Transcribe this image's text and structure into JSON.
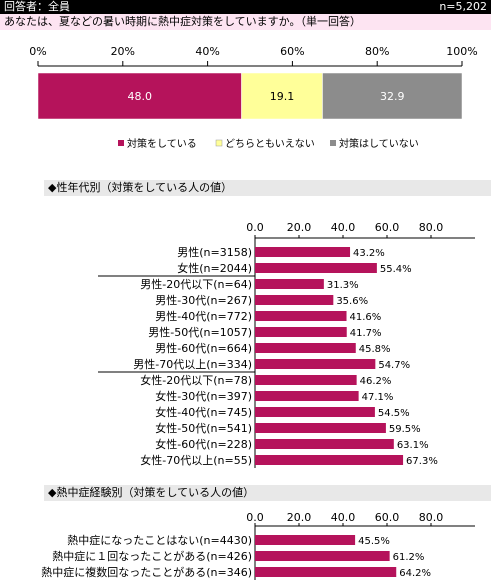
{
  "header": {
    "respondents": "回答者：全員",
    "n": "n=5,202"
  },
  "question": "あなたは、夏などの暑い時期に熱中症対策をしていますか。（単一回答）",
  "colors": {
    "accent": "#b5135b",
    "neutral": "#ffff99",
    "gray": "#8c8c8c"
  },
  "chart_data": [
    {
      "type": "bar",
      "orientation": "horizontal-stacked",
      "ticks": [
        "0%",
        "20%",
        "40%",
        "60%",
        "80%",
        "100%"
      ],
      "xlim": [
        0,
        100
      ],
      "series": [
        {
          "name": "対策をしている",
          "values": [
            48.0
          ],
          "labels": [
            "48.0"
          ],
          "color": "#b5135b"
        },
        {
          "name": "どちらともいえない",
          "values": [
            19.1
          ],
          "labels": [
            "19.1"
          ],
          "color": "#ffff99"
        },
        {
          "name": "対策はしていない",
          "values": [
            32.9
          ],
          "labels": [
            "32.9"
          ],
          "color": "#8c8c8c"
        }
      ],
      "legend": "bottom"
    },
    {
      "type": "bar",
      "orientation": "horizontal",
      "title": "◆性年代別（対策をしている人の値）",
      "ticks": [
        "0.0",
        "20.0",
        "40.0",
        "60.0",
        "80.0"
      ],
      "xlim": [
        0,
        100
      ],
      "categories": [
        "男性(n=3158)",
        "女性(n=2044)",
        "男性-20代以下(n=64)",
        "男性-30代(n=267)",
        "男性-40代(n=772)",
        "男性-50代(n=1057)",
        "男性-60代(n=664)",
        "男性-70代以上(n=334)",
        "女性-20代以下(n=78)",
        "女性-30代(n=397)",
        "女性-40代(n=745)",
        "女性-50代(n=541)",
        "女性-60代(n=228)",
        "女性-70代以上(n=55)"
      ],
      "values": [
        43.2,
        55.4,
        31.3,
        35.6,
        41.6,
        41.7,
        45.8,
        54.7,
        46.2,
        47.1,
        54.5,
        59.5,
        63.1,
        67.3
      ],
      "labels": [
        "43.2%",
        "55.4%",
        "31.3%",
        "35.6%",
        "41.6%",
        "41.7%",
        "45.8%",
        "54.7%",
        "46.2%",
        "47.1%",
        "54.5%",
        "59.5%",
        "63.1%",
        "67.3%"
      ],
      "separators_after": [
        1,
        7
      ]
    },
    {
      "type": "bar",
      "orientation": "horizontal",
      "title": "◆熱中症経験別（対策をしている人の値）",
      "ticks": [
        "0.0",
        "20.0",
        "40.0",
        "60.0",
        "80.0"
      ],
      "xlim": [
        0,
        100
      ],
      "categories": [
        "熱中症になったことはない(n=4430)",
        "熱中症に１回なったことがある(n=426)",
        "熱中症に複数回なったことがある(n=346)"
      ],
      "values": [
        45.5,
        61.2,
        64.2
      ],
      "labels": [
        "45.5%",
        "61.2%",
        "64.2%"
      ],
      "separators_after": []
    }
  ]
}
